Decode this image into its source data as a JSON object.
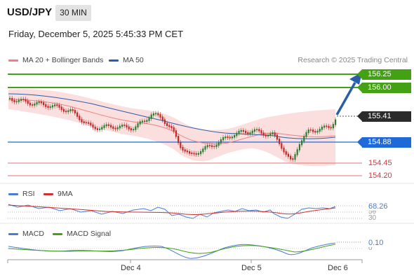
{
  "header": {
    "symbol": "USD/JPY",
    "timeframe": "30 MIN",
    "datetime": "Friday, December 5, 2025 5:45:33 PM CET"
  },
  "legend": {
    "ma20_label": "MA 20 + Bollinger Bands",
    "ma50_label": "MA 50",
    "credit": "Research © 2025 Trading Central"
  },
  "colors": {
    "green_level": "#43a113",
    "blue_level": "#1f6ad8",
    "red_level": "#d6363f",
    "bollinger_fill": "#fbd8d8",
    "ma20": "#f08080",
    "ma50": "#2b5ea8",
    "candle_up": "#2e7d32",
    "candle_down": "#c62828"
  },
  "levels": {
    "resistance_2": "156.25",
    "resistance_1": "156.00",
    "current_price": "155.41",
    "pivot": "154.88",
    "support_1": "154.45",
    "support_2": "154.20"
  },
  "rsi": {
    "label": "RSI",
    "ma_label": "9MA",
    "value": "68.26",
    "level_70": "70",
    "level_50": "50",
    "level_30": "30"
  },
  "macd": {
    "label": "MACD",
    "signal_label": "MACD Signal",
    "value": "0.10",
    "zero": "0"
  },
  "x_axis": {
    "labels": [
      "Dec 4",
      "Dec 5",
      "Dec 6"
    ]
  }
}
